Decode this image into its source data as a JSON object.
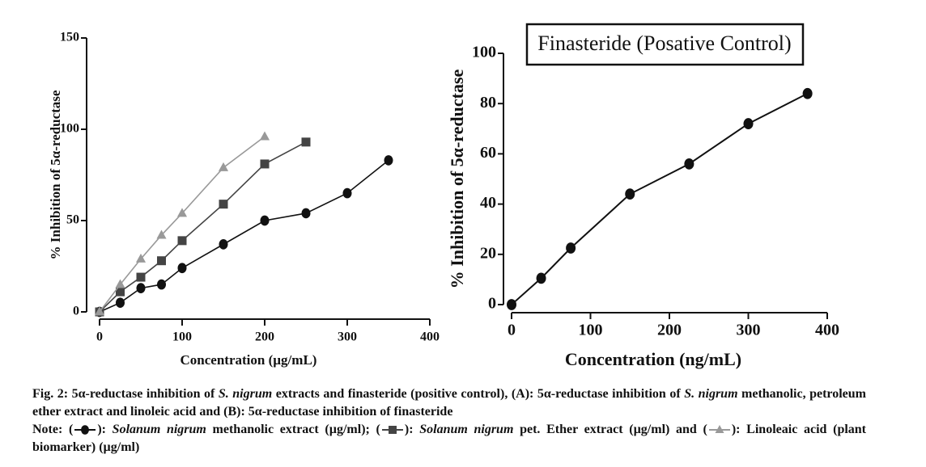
{
  "chart_data": [
    {
      "type": "line",
      "y_label": "% Inhibition of 5α-reductase",
      "x_label": "Concentration (µg/mL)",
      "xlim": [
        0,
        400
      ],
      "xticks": [
        0,
        100,
        200,
        300,
        400
      ],
      "ylim": [
        0,
        150
      ],
      "yticks": [
        0,
        50,
        100,
        150
      ],
      "series": [
        {
          "name": "Solanum nigrum methanolic extract (µg/ml)",
          "color": "#111111",
          "marker": "circle",
          "x": [
            0,
            25,
            50,
            75,
            100,
            150,
            200,
            250,
            300,
            350
          ],
          "values": [
            0,
            5,
            13,
            15,
            24,
            37,
            50,
            54,
            65,
            83
          ]
        },
        {
          "name": "Solanum nigrum pet. Ether extract (µg/ml)",
          "color": "#444444",
          "marker": "square",
          "x": [
            0,
            25,
            50,
            75,
            100,
            150,
            200,
            250
          ],
          "values": [
            0,
            11,
            19,
            28,
            39,
            59,
            81,
            93
          ]
        },
        {
          "name": "Linoleaic acid (plant biomarker) (µg/ml)",
          "color": "#999999",
          "marker": "triangle",
          "x": [
            0,
            25,
            50,
            75,
            100,
            150,
            200
          ],
          "values": [
            0,
            15,
            29,
            42,
            54,
            79,
            96
          ]
        }
      ]
    },
    {
      "type": "line",
      "title": "Finasteride (Posative Control)",
      "y_label": "% Inhibition of 5α-reductase",
      "x_label": "Concentration (ng/mL)",
      "xlim": [
        0,
        400
      ],
      "xticks": [
        0,
        100,
        200,
        300,
        400
      ],
      "ylim": [
        0,
        100
      ],
      "yticks": [
        0,
        20,
        40,
        60,
        80,
        100
      ],
      "series": [
        {
          "name": "Finasteride",
          "color": "#111111",
          "marker": "circle",
          "x": [
            0,
            37.5,
            75,
            150,
            225,
            300,
            375
          ],
          "values": [
            0,
            10.5,
            22.5,
            44,
            56,
            72,
            84
          ]
        }
      ]
    }
  ],
  "caption": [
    [
      {
        "text": "Fig. 2: 5α-reductase inhibition of ",
        "italic": false
      },
      {
        "text": "S. nigrum",
        "italic": true
      },
      {
        "text": " extracts and finasteride (positive control), (A): 5α-reductase inhibition of ",
        "italic": false
      },
      {
        "text": "S. nigrum",
        "italic": true
      },
      {
        "text": " methanolic, petroleum ether extract and linoleic acid and (B): 5α-reductase inhibition of finasteride",
        "italic": false
      }
    ],
    [
      {
        "text": "Note: (",
        "italic": false
      },
      {
        "symbol": "circle"
      },
      {
        "text": "): ",
        "italic": false
      },
      {
        "text": "Solanum nigrum",
        "italic": true
      },
      {
        "text": " methanolic extract (µg/ml); (",
        "italic": false
      },
      {
        "symbol": "square"
      },
      {
        "text": "): ",
        "italic": false
      },
      {
        "text": "Solanum nigrum",
        "italic": true
      },
      {
        "text": " pet. Ether extract (µg/ml) and (",
        "italic": false
      },
      {
        "symbol": "triangle"
      },
      {
        "text": "): Linoleaic acid (plant biomarker) (µg/ml)",
        "italic": false
      }
    ]
  ]
}
